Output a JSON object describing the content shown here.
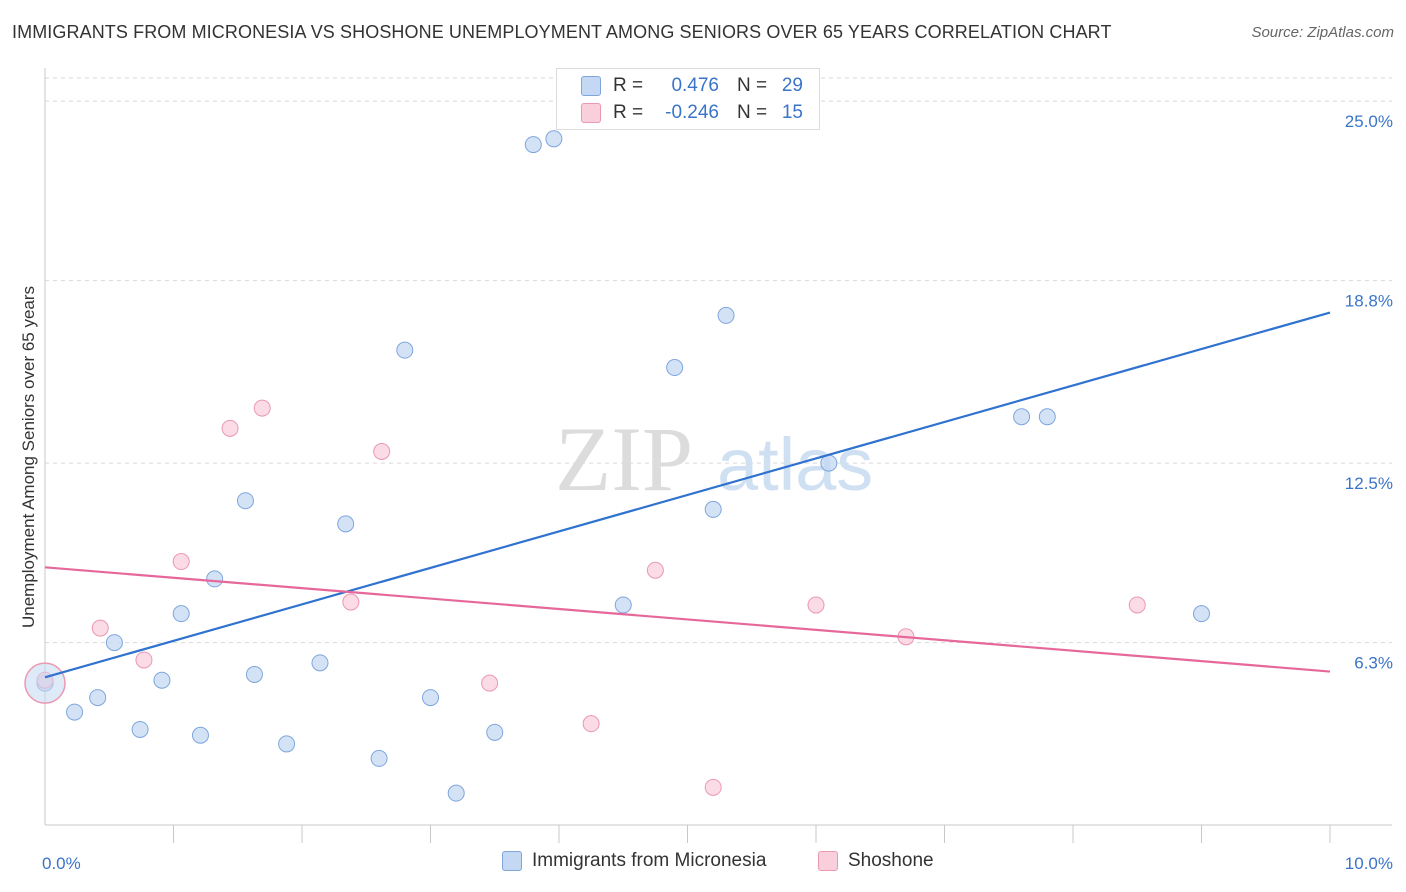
{
  "title": "IMMIGRANTS FROM MICRONESIA VS SHOSHONE UNEMPLOYMENT AMONG SENIORS OVER 65 YEARS CORRELATION CHART",
  "source": "Source: ZipAtlas.com",
  "watermark": {
    "zip": "ZIP",
    "atlas": "atlas"
  },
  "legend": {
    "r_label": "R =",
    "n_label": "N =",
    "series": [
      {
        "name": "Immigrants from Micronesia",
        "r": "0.476",
        "n": "29"
      },
      {
        "name": "Shoshone",
        "r": "-0.246",
        "n": "15"
      }
    ]
  },
  "colors": {
    "blue_fill": "#c5d8f3",
    "blue_stroke": "#7ea6dd",
    "blue_line": "#2f72cf",
    "pink_fill": "#f9cfdc",
    "pink_stroke": "#eb98b1",
    "pink_line": "#e6689a",
    "axis_text": "#3a74c9",
    "grid": "#d9d9d9"
  },
  "chart_data": {
    "type": "scatter",
    "title": "IMMIGRANTS FROM MICRONESIA VS SHOSHONE UNEMPLOYMENT AMONG SENIORS OVER 65 YEARS CORRELATION CHART",
    "xlabel": "",
    "ylabel": "Unemployment Among Seniors over 65 years",
    "xlim": [
      0,
      10
    ],
    "ylim": [
      0,
      25.8
    ],
    "x_tick_labels": [
      {
        "value": 0,
        "label": "0.0%"
      },
      {
        "value": 10,
        "label": "10.0%"
      }
    ],
    "x_minor_ticks": [
      1,
      2,
      3,
      4,
      5,
      6,
      7,
      8,
      9,
      10
    ],
    "y_ticks": [
      {
        "value": 6.3,
        "label": "6.3%"
      },
      {
        "value": 12.5,
        "label": "12.5%"
      },
      {
        "value": 18.8,
        "label": "18.8%"
      },
      {
        "value": 25.0,
        "label": "25.0%"
      }
    ],
    "series": [
      {
        "name": "Immigrants from Micronesia",
        "color": "blue",
        "points": [
          [
            0.0,
            4.9
          ],
          [
            0.23,
            3.9
          ],
          [
            0.41,
            4.4
          ],
          [
            0.54,
            6.3
          ],
          [
            0.74,
            3.3
          ],
          [
            0.91,
            5.0
          ],
          [
            1.06,
            7.3
          ],
          [
            1.21,
            3.1
          ],
          [
            1.32,
            8.5
          ],
          [
            1.56,
            11.2
          ],
          [
            1.63,
            5.2
          ],
          [
            1.88,
            2.8
          ],
          [
            2.14,
            5.6
          ],
          [
            2.34,
            10.4
          ],
          [
            2.6,
            2.3
          ],
          [
            2.8,
            16.4
          ],
          [
            3.0,
            4.4
          ],
          [
            3.2,
            1.1
          ],
          [
            3.5,
            3.2
          ],
          [
            3.8,
            23.5
          ],
          [
            3.96,
            23.7
          ],
          [
            4.5,
            7.6
          ],
          [
            4.9,
            15.8
          ],
          [
            5.2,
            10.9
          ],
          [
            5.3,
            17.6
          ],
          [
            6.1,
            12.5
          ],
          [
            7.6,
            14.1
          ],
          [
            7.8,
            14.1
          ],
          [
            9.0,
            7.3
          ]
        ],
        "trend": [
          [
            0.0,
            5.1
          ],
          [
            10.0,
            17.7
          ]
        ]
      },
      {
        "name": "Shoshone",
        "color": "pink",
        "points": [
          [
            0.0,
            5.0
          ],
          [
            0.43,
            6.8
          ],
          [
            0.77,
            5.7
          ],
          [
            1.06,
            9.1
          ],
          [
            1.44,
            13.7
          ],
          [
            1.69,
            14.4
          ],
          [
            2.38,
            7.7
          ],
          [
            2.62,
            12.9
          ],
          [
            3.46,
            4.9
          ],
          [
            4.25,
            3.5
          ],
          [
            4.75,
            8.8
          ],
          [
            5.2,
            1.3
          ],
          [
            6.0,
            7.6
          ],
          [
            6.7,
            6.5
          ],
          [
            8.5,
            7.6
          ]
        ],
        "trend": [
          [
            0.0,
            8.9
          ],
          [
            10.0,
            5.3
          ]
        ]
      }
    ]
  }
}
